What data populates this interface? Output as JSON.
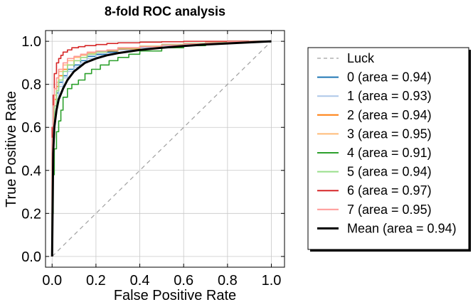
{
  "chart_data": {
    "type": "line",
    "title": "8-fold ROC analysis",
    "xlabel": "False Positive Rate",
    "ylabel": "True Positive Rate",
    "xlim": [
      -0.03,
      1.06
    ],
    "ylim": [
      -0.05,
      1.05
    ],
    "xticks": [
      0.0,
      0.2,
      0.4,
      0.6,
      0.8,
      1.0
    ],
    "yticks": [
      0.0,
      0.2,
      0.4,
      0.6,
      0.8,
      1.0
    ],
    "xtick_labels": [
      "0.0",
      "0.2",
      "0.4",
      "0.6",
      "0.8",
      "1.0"
    ],
    "ytick_labels": [
      "0.0",
      "0.2",
      "0.4",
      "0.6",
      "0.8",
      "1.0"
    ],
    "grid": true,
    "legend_position": "outside-right",
    "luck_line": {
      "name": "Luck",
      "color": "#a0a0a0",
      "style": "dashed",
      "x": [
        0,
        1
      ],
      "y": [
        0,
        1
      ]
    },
    "series": [
      {
        "name": "0 (area = 0.94)",
        "color": "#1f77b4",
        "style": "step",
        "x": [
          0,
          0.005,
          0.01,
          0.02,
          0.03,
          0.05,
          0.07,
          0.1,
          0.13,
          0.16,
          0.2,
          0.25,
          0.3,
          0.4,
          0.5,
          0.6,
          0.7,
          0.8,
          0.9,
          1.0
        ],
        "y": [
          0,
          0.45,
          0.6,
          0.7,
          0.76,
          0.81,
          0.84,
          0.87,
          0.89,
          0.91,
          0.93,
          0.94,
          0.95,
          0.965,
          0.975,
          0.985,
          0.99,
          0.995,
          1.0,
          1.0
        ]
      },
      {
        "name": "1 (area = 0.93)",
        "color": "#aec7e8",
        "style": "step",
        "x": [
          0,
          0.005,
          0.01,
          0.02,
          0.03,
          0.05,
          0.07,
          0.1,
          0.13,
          0.16,
          0.2,
          0.25,
          0.3,
          0.4,
          0.5,
          0.6,
          0.7,
          0.8,
          0.9,
          1.0
        ],
        "y": [
          0,
          0.4,
          0.55,
          0.66,
          0.73,
          0.79,
          0.83,
          0.86,
          0.88,
          0.9,
          0.92,
          0.935,
          0.945,
          0.96,
          0.97,
          0.98,
          0.985,
          0.99,
          0.998,
          1.0
        ]
      },
      {
        "name": "2 (area = 0.94)",
        "color": "#ff7f0e",
        "style": "step",
        "x": [
          0,
          0.005,
          0.01,
          0.02,
          0.03,
          0.05,
          0.07,
          0.1,
          0.13,
          0.16,
          0.2,
          0.25,
          0.3,
          0.4,
          0.5,
          0.6,
          0.7,
          0.8,
          0.9,
          1.0
        ],
        "y": [
          0,
          0.48,
          0.63,
          0.73,
          0.79,
          0.84,
          0.87,
          0.89,
          0.91,
          0.925,
          0.94,
          0.95,
          0.955,
          0.965,
          0.975,
          0.985,
          0.99,
          0.995,
          1.0,
          1.0
        ]
      },
      {
        "name": "3 (area = 0.95)",
        "color": "#ffbb78",
        "style": "step",
        "x": [
          0,
          0.005,
          0.01,
          0.02,
          0.03,
          0.05,
          0.07,
          0.1,
          0.13,
          0.16,
          0.2,
          0.25,
          0.3,
          0.4,
          0.5,
          0.6,
          0.7,
          0.8,
          0.9,
          1.0
        ],
        "y": [
          0,
          0.52,
          0.66,
          0.75,
          0.81,
          0.86,
          0.89,
          0.91,
          0.925,
          0.935,
          0.945,
          0.955,
          0.96,
          0.97,
          0.978,
          0.985,
          0.99,
          0.995,
          1.0,
          1.0
        ]
      },
      {
        "name": "4 (area = 0.91)",
        "color": "#2ca02c",
        "style": "step",
        "x": [
          0,
          0.005,
          0.01,
          0.02,
          0.03,
          0.04,
          0.05,
          0.07,
          0.09,
          0.12,
          0.15,
          0.18,
          0.22,
          0.26,
          0.3,
          0.35,
          0.4,
          0.5,
          0.6,
          0.7,
          0.8,
          0.9,
          1.0
        ],
        "y": [
          0,
          0.2,
          0.38,
          0.5,
          0.58,
          0.63,
          0.68,
          0.74,
          0.78,
          0.8,
          0.82,
          0.85,
          0.87,
          0.89,
          0.91,
          0.925,
          0.94,
          0.955,
          0.97,
          0.98,
          0.99,
          0.998,
          1.0
        ]
      },
      {
        "name": "5 (area = 0.94)",
        "color": "#98df8a",
        "style": "step",
        "x": [
          0,
          0.005,
          0.01,
          0.02,
          0.03,
          0.05,
          0.07,
          0.1,
          0.13,
          0.16,
          0.2,
          0.25,
          0.3,
          0.4,
          0.5,
          0.6,
          0.7,
          0.8,
          0.9,
          1.0
        ],
        "y": [
          0,
          0.46,
          0.6,
          0.7,
          0.77,
          0.82,
          0.86,
          0.89,
          0.91,
          0.925,
          0.94,
          0.95,
          0.958,
          0.968,
          0.976,
          0.984,
          0.99,
          0.995,
          1.0,
          1.0
        ]
      },
      {
        "name": "6 (area = 0.97)",
        "color": "#d62728",
        "style": "step",
        "x": [
          0,
          0.005,
          0.01,
          0.02,
          0.03,
          0.04,
          0.05,
          0.07,
          0.09,
          0.12,
          0.15,
          0.2,
          0.25,
          0.3,
          0.4,
          0.5,
          0.6,
          0.7,
          0.8,
          0.9,
          1.0
        ],
        "y": [
          0,
          0.6,
          0.75,
          0.85,
          0.9,
          0.92,
          0.935,
          0.95,
          0.96,
          0.97,
          0.975,
          0.98,
          0.985,
          0.99,
          0.993,
          0.996,
          0.998,
          1.0,
          1.0,
          1.0,
          1.0
        ]
      },
      {
        "name": "7 (area = 0.95)",
        "color": "#ff9896",
        "style": "step",
        "x": [
          0,
          0.005,
          0.01,
          0.02,
          0.03,
          0.05,
          0.07,
          0.1,
          0.13,
          0.16,
          0.2,
          0.25,
          0.3,
          0.4,
          0.5,
          0.6,
          0.7,
          0.8,
          0.9,
          1.0
        ],
        "y": [
          0,
          0.55,
          0.7,
          0.78,
          0.83,
          0.87,
          0.9,
          0.92,
          0.93,
          0.94,
          0.95,
          0.955,
          0.96,
          0.97,
          0.975,
          0.982,
          0.988,
          0.993,
          0.998,
          1.0
        ]
      },
      {
        "name": "Mean (area = 0.94)",
        "color": "#000000",
        "style": "mean",
        "x": [
          0,
          0.005,
          0.01,
          0.02,
          0.03,
          0.05,
          0.07,
          0.1,
          0.15,
          0.2,
          0.25,
          0.3,
          0.4,
          0.5,
          0.6,
          0.7,
          0.8,
          0.9,
          1.0
        ],
        "y": [
          0,
          0.48,
          0.6,
          0.68,
          0.73,
          0.78,
          0.82,
          0.86,
          0.9,
          0.92,
          0.935,
          0.945,
          0.96,
          0.97,
          0.978,
          0.985,
          0.99,
          0.995,
          1.0
        ]
      }
    ]
  }
}
